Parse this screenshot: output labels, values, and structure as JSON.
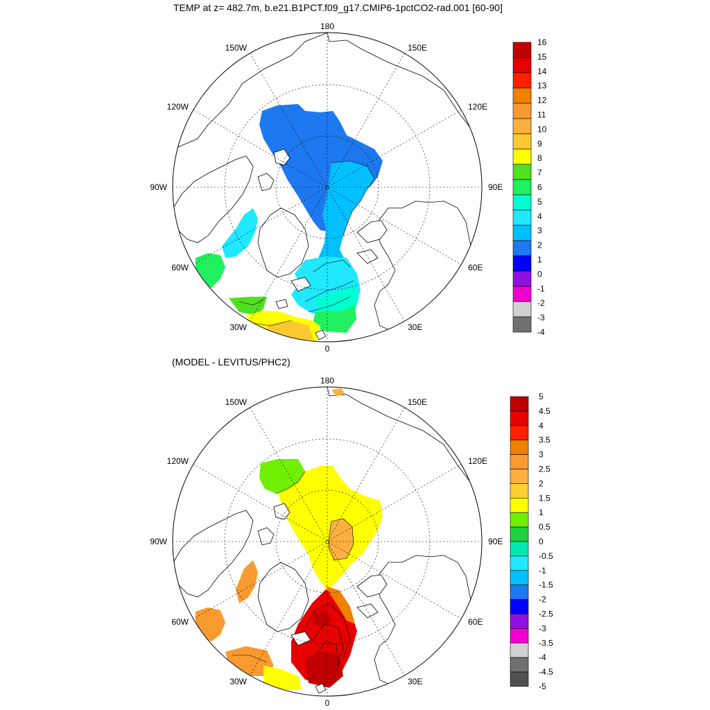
{
  "panels": [
    {
      "title": "TEMP at z= 482.7m, b.e21.B1PCT.f09_g17.CMIP6-1pctCO2-rad.001 [60-90]",
      "lon_labels": {
        "top": "180",
        "tr": "150E",
        "rt": "120E",
        "right": "90E",
        "rb": "60E",
        "br": "30E",
        "bottom": "0",
        "bl": "30W",
        "lb": "60W",
        "left": "90W",
        "lt": "120W",
        "tl": "150W"
      },
      "colorbar": {
        "labels": [
          "16",
          "15",
          "14",
          "13",
          "12",
          "11",
          "10",
          "9",
          "8",
          "7",
          "6",
          "5",
          "4",
          "3",
          "2",
          "1",
          "0",
          "-1",
          "-2",
          "-3",
          "-4"
        ],
        "colors": [
          "#c00000",
          "#e60000",
          "#ff2000",
          "#f08000",
          "#f89a30",
          "#fbb040",
          "#fdc830",
          "#ffff00",
          "#50e020",
          "#20f060",
          "#00ffd0",
          "#20e8ff",
          "#00c0ff",
          "#1e78f0",
          "#0000ff",
          "#9010e0",
          "#f000d0",
          "#d0d0d0",
          "#707070"
        ]
      }
    },
    {
      "title": "(MODEL - LEVITUS/PHC2)",
      "lon_labels": {
        "top": "180",
        "tr": "150E",
        "rt": "120E",
        "right": "90E",
        "rb": "60E",
        "br": "30E",
        "bottom": "0",
        "bl": "30W",
        "lb": "60W",
        "left": "90W",
        "lt": "120W",
        "tl": "150W"
      },
      "colorbar": {
        "labels": [
          "5",
          "4.5",
          "4",
          "3.5",
          "3",
          "2.5",
          "2",
          "1.5",
          "1",
          "0.5",
          "0",
          "-0.5",
          "-1",
          "-1.5",
          "-2",
          "-2.5",
          "-3",
          "-3.5",
          "-4",
          "-4.5",
          "-5"
        ],
        "colors": [
          "#c00000",
          "#e60000",
          "#ff2000",
          "#f08000",
          "#f89a30",
          "#fbb040",
          "#fdd030",
          "#ffff00",
          "#70f000",
          "#20d040",
          "#00e8b0",
          "#20e8ff",
          "#00c0ff",
          "#1e78f0",
          "#0000ff",
          "#9010e0",
          "#f000d0",
          "#d0d0d0",
          "#707070",
          "#505050"
        ]
      }
    }
  ]
}
